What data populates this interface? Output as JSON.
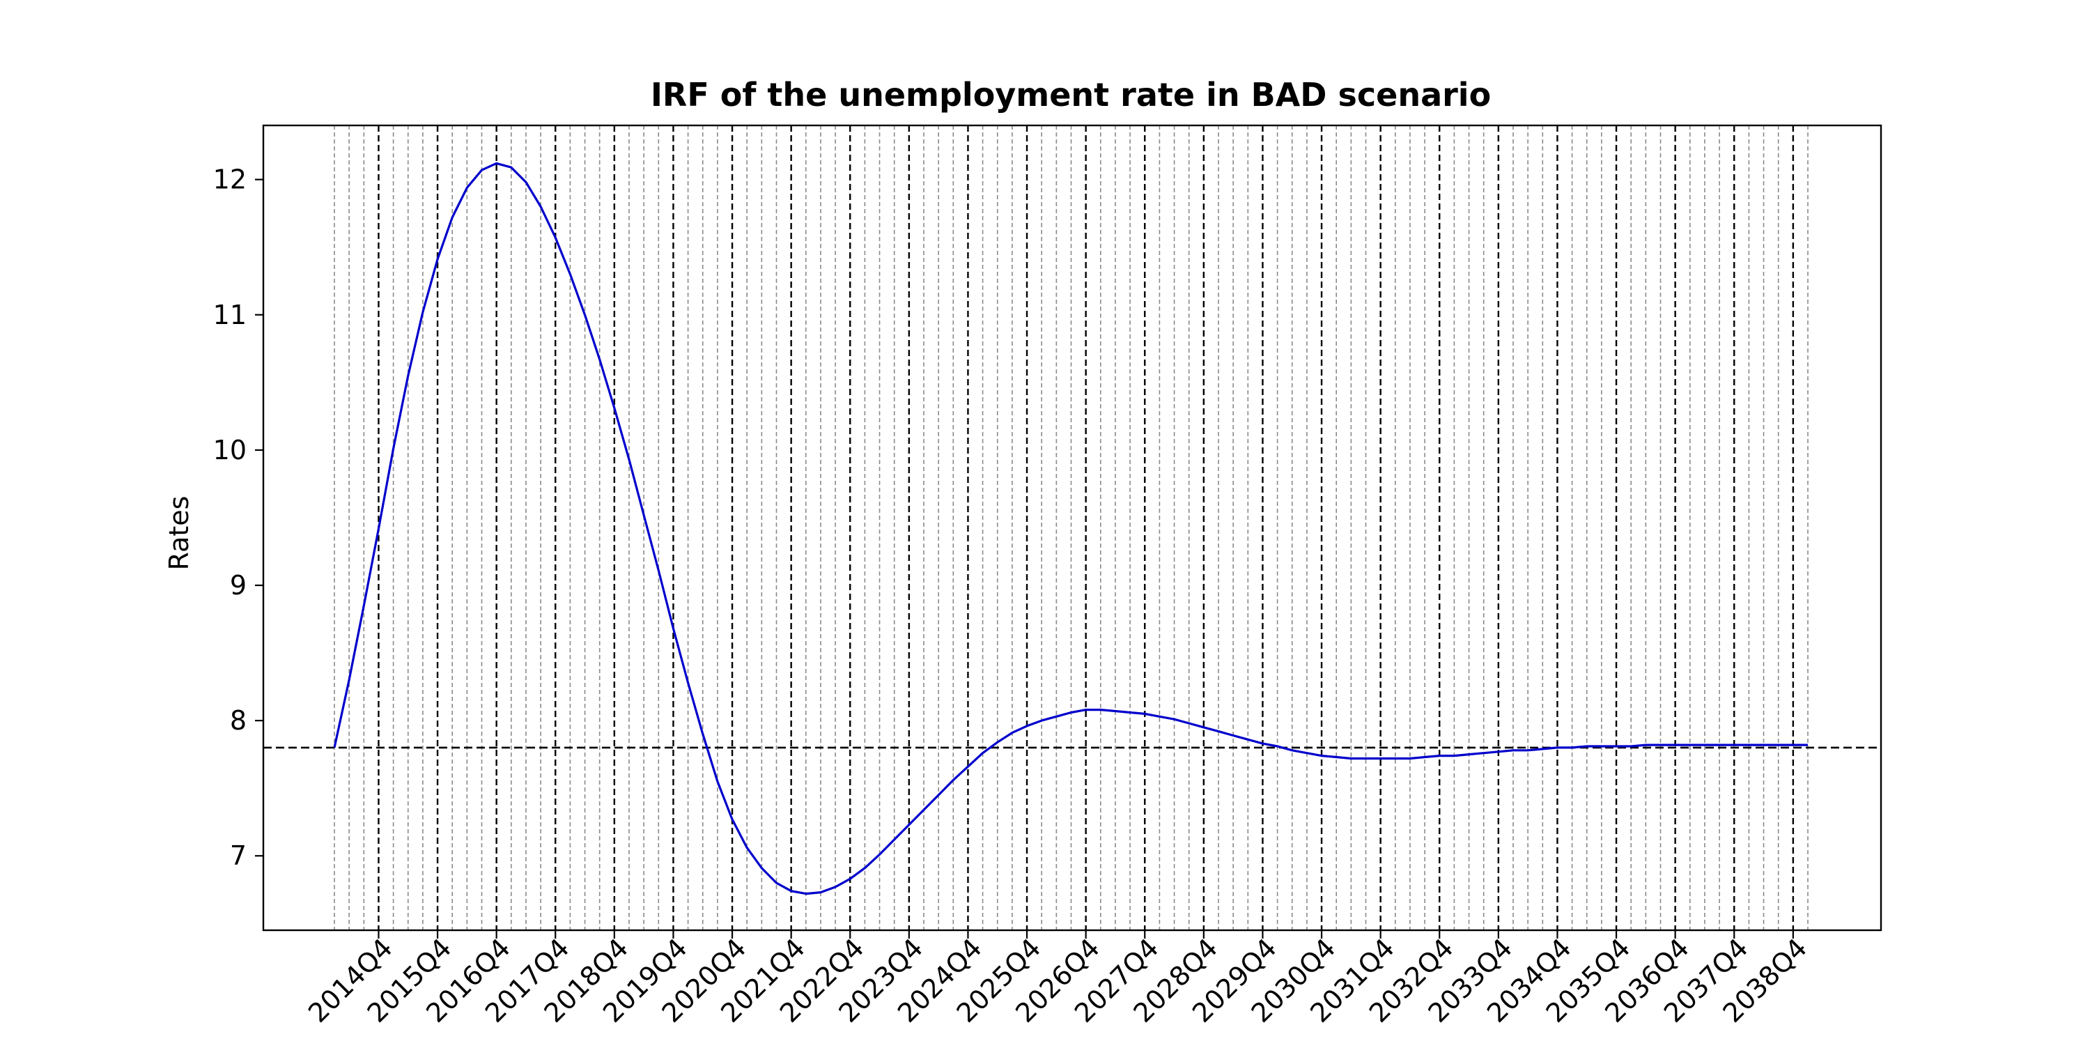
{
  "chart_data": {
    "type": "line",
    "title": "IRF of the unemployment rate in BAD scenario",
    "xlabel": "",
    "ylabel": "Rates",
    "ylim": [
      6.45,
      12.4
    ],
    "yticks": [
      7,
      8,
      9,
      10,
      11,
      12
    ],
    "baseline": 7.8,
    "line_color": "#0000cc",
    "grid": "vertical dashed lines at every quarter; darker dashed lines at Q4",
    "x": [
      "2014Q1",
      "2014Q2",
      "2014Q3",
      "2014Q4",
      "2015Q1",
      "2015Q2",
      "2015Q3",
      "2015Q4",
      "2016Q1",
      "2016Q2",
      "2016Q3",
      "2016Q4",
      "2017Q1",
      "2017Q2",
      "2017Q3",
      "2017Q4",
      "2018Q1",
      "2018Q2",
      "2018Q3",
      "2018Q4",
      "2019Q1",
      "2019Q2",
      "2019Q3",
      "2019Q4",
      "2020Q1",
      "2020Q2",
      "2020Q3",
      "2020Q4",
      "2021Q1",
      "2021Q2",
      "2021Q3",
      "2021Q4",
      "2022Q1",
      "2022Q2",
      "2022Q3",
      "2022Q4",
      "2023Q1",
      "2023Q2",
      "2023Q3",
      "2023Q4",
      "2024Q1",
      "2024Q2",
      "2024Q3",
      "2024Q4",
      "2025Q1",
      "2025Q2",
      "2025Q3",
      "2025Q4",
      "2026Q1",
      "2026Q2",
      "2026Q3",
      "2026Q4",
      "2027Q1",
      "2027Q2",
      "2027Q3",
      "2027Q4",
      "2028Q1",
      "2028Q2",
      "2028Q3",
      "2028Q4",
      "2029Q1",
      "2029Q2",
      "2029Q3",
      "2029Q4",
      "2030Q1",
      "2030Q2",
      "2030Q3",
      "2030Q4",
      "2031Q1",
      "2031Q2",
      "2031Q3",
      "2031Q4",
      "2032Q1",
      "2032Q2",
      "2032Q3",
      "2032Q4",
      "2033Q1",
      "2033Q2",
      "2033Q3",
      "2033Q4",
      "2034Q1",
      "2034Q2",
      "2034Q3",
      "2034Q4",
      "2035Q1",
      "2035Q2",
      "2035Q3",
      "2035Q4",
      "2036Q1",
      "2036Q2",
      "2036Q3",
      "2036Q4",
      "2037Q1",
      "2037Q2",
      "2037Q3",
      "2037Q4",
      "2038Q1",
      "2038Q2",
      "2038Q3",
      "2038Q4",
      "2039Q1"
    ],
    "xtick_labels": [
      "2014Q4",
      "2015Q4",
      "2016Q4",
      "2017Q4",
      "2018Q4",
      "2019Q4",
      "2020Q4",
      "2021Q4",
      "2022Q4",
      "2023Q4",
      "2024Q4",
      "2025Q4",
      "2026Q4",
      "2027Q4",
      "2028Q4",
      "2029Q4",
      "2030Q4",
      "2031Q4",
      "2032Q4",
      "2033Q4",
      "2034Q4",
      "2035Q4",
      "2036Q4",
      "2037Q4",
      "2038Q4"
    ],
    "series": [
      {
        "values": [
          7.8,
          8.3,
          8.85,
          9.42,
          10.01,
          10.55,
          11.02,
          11.41,
          11.72,
          11.94,
          12.07,
          12.12,
          12.09,
          11.98,
          11.8,
          11.57,
          11.3,
          11.0,
          10.67,
          10.31,
          9.93,
          9.52,
          9.11,
          8.68,
          8.28,
          7.9,
          7.55,
          7.27,
          7.06,
          6.91,
          6.8,
          6.74,
          6.72,
          6.73,
          6.77,
          6.83,
          6.91,
          7.01,
          7.12,
          7.23,
          7.34,
          7.45,
          7.56,
          7.66,
          7.76,
          7.84,
          7.91,
          7.96,
          8.0,
          8.03,
          8.06,
          8.08,
          8.08,
          8.07,
          8.06,
          8.05,
          8.03,
          8.01,
          7.98,
          7.95,
          7.92,
          7.89,
          7.86,
          7.83,
          7.81,
          7.78,
          7.76,
          7.74,
          7.73,
          7.72,
          7.72,
          7.72,
          7.72,
          7.72,
          7.73,
          7.74,
          7.74,
          7.75,
          7.76,
          7.77,
          7.78,
          7.78,
          7.79,
          7.8,
          7.8,
          7.81,
          7.81,
          7.81,
          7.81,
          7.82,
          7.82,
          7.82,
          7.82,
          7.82,
          7.82,
          7.82,
          7.82,
          7.82,
          7.82,
          7.82,
          7.82
        ]
      }
    ]
  }
}
